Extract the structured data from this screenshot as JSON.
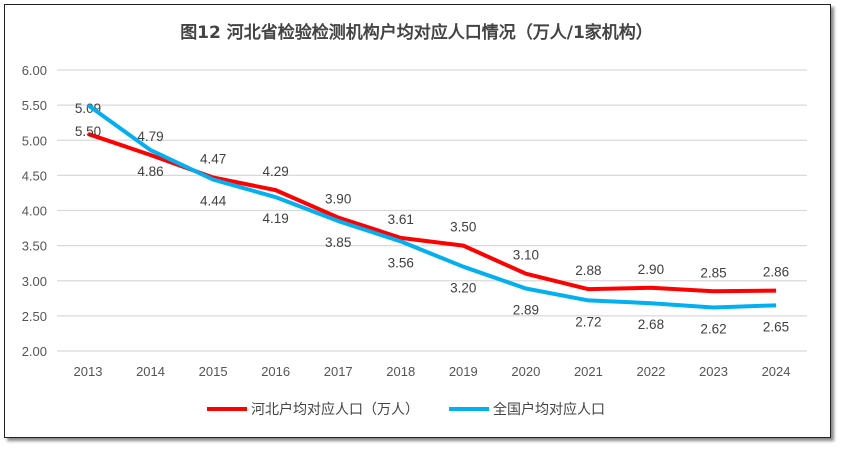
{
  "chart_data": {
    "type": "line",
    "title": "图12  河北省检验检测机构户均对应人口情况（万人/1家机构）",
    "categories": [
      "2013",
      "2014",
      "2015",
      "2016",
      "2017",
      "2018",
      "2019",
      "2020",
      "2021",
      "2022",
      "2023",
      "2024"
    ],
    "ylim": [
      2.0,
      6.0
    ],
    "yticks": [
      "2.00",
      "2.50",
      "3.00",
      "3.50",
      "4.00",
      "4.50",
      "5.00",
      "5.50",
      "6.00"
    ],
    "grid": true,
    "legend": "bottom",
    "series": [
      {
        "name": "河北户均对应人口（万人）",
        "color": "#ff0000",
        "values": [
          5.09,
          4.79,
          4.47,
          4.29,
          3.9,
          3.61,
          3.5,
          3.1,
          2.88,
          2.9,
          2.85,
          2.86
        ]
      },
      {
        "name": "全国户均对应人口",
        "color": "#00b0f0",
        "values": [
          5.5,
          4.86,
          4.44,
          4.19,
          3.85,
          3.56,
          3.2,
          2.89,
          2.72,
          2.68,
          2.62,
          2.65
        ]
      }
    ]
  }
}
